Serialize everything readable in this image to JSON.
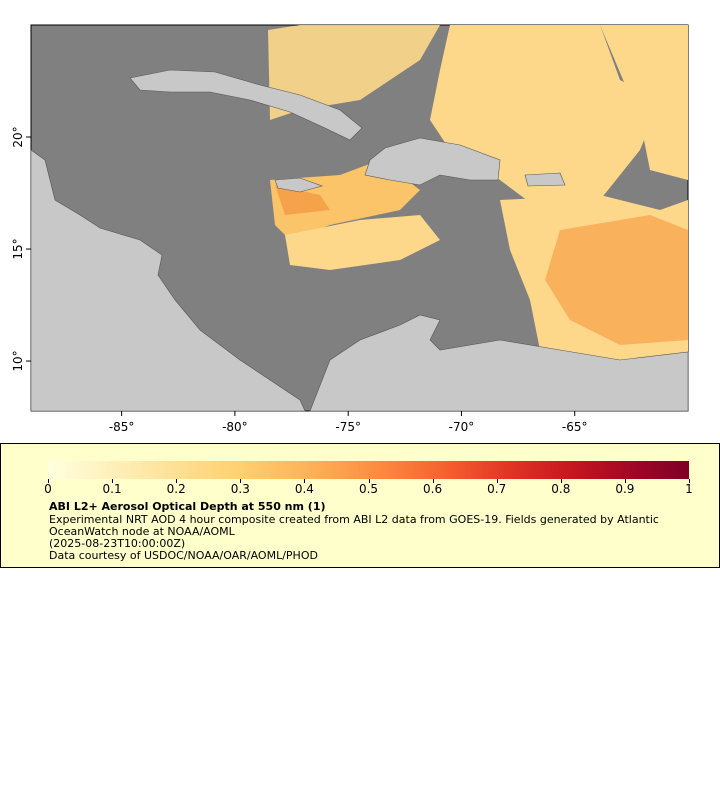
{
  "map": {
    "xlim": [
      -89,
      -60
    ],
    "ylim": [
      7.77,
      25
    ],
    "lon_ticks": [
      {
        "value": -85,
        "label": "-85°"
      },
      {
        "value": -80,
        "label": "-80°"
      },
      {
        "value": -75,
        "label": "-75°"
      },
      {
        "value": -70,
        "label": "-70°"
      },
      {
        "value": -65,
        "label": "-65°"
      }
    ],
    "lat_ticks": [
      {
        "value": 20,
        "label": "20°"
      },
      {
        "value": 15,
        "label": "15°"
      },
      {
        "value": 10,
        "label": "10°"
      }
    ]
  },
  "colorbar": {
    "range": [
      0,
      1
    ],
    "ticks": [
      0,
      0.1,
      0.2,
      0.3,
      0.4,
      0.5,
      0.6,
      0.7,
      0.8,
      0.9,
      1
    ]
  },
  "legend": {
    "title": "ABI L2+ Aerosol Optical Depth at 550 nm (1)",
    "lines": [
      "Experimental NRT AOD 4 hour composite created from ABI L2 data from GOES-19. Fields generated by Atlantic",
      "OceanWatch node at NOAA/AOML",
      "(2025-08-23T10:00:00Z)",
      "Data courtesy of USDOC/NOAA/OAR/AOML/PHOD"
    ]
  }
}
